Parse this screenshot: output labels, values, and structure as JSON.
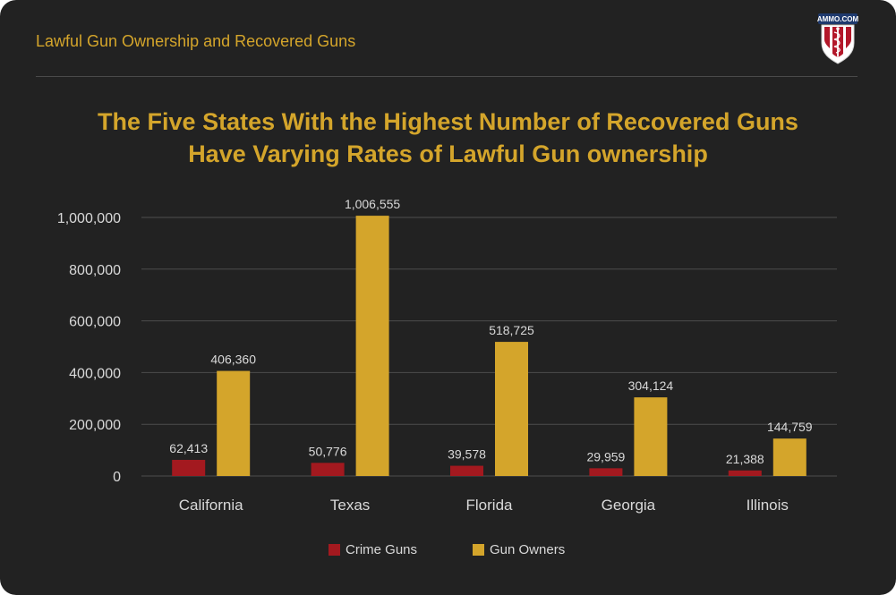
{
  "header": {
    "title": "Lawful Gun Ownership and Recovered Guns",
    "logo_text": "AMMO.COM",
    "logo_icon": "caduceus-shield-icon"
  },
  "colors": {
    "background": "#222222",
    "accent": "#d4a52b",
    "crime_guns": "#a3191f",
    "gun_owners": "#d4a52b",
    "gridline": "#4d4d4d",
    "label": "#d9d9d9"
  },
  "chart_data": {
    "type": "bar",
    "title_lines": [
      "The Five States With the Highest Number of Recovered Guns",
      "Have Varying Rates of Lawful Gun ownership"
    ],
    "categories": [
      "California",
      "Texas",
      "Florida",
      "Georgia",
      "Illinois"
    ],
    "series": [
      {
        "name": "Crime Guns",
        "values": [
          62413,
          50776,
          39578,
          29959,
          21388
        ],
        "labels": [
          "62,413",
          "50,776",
          "39,578",
          "29,959",
          "21,388"
        ]
      },
      {
        "name": "Gun Owners",
        "values": [
          406360,
          1006555,
          518725,
          304124,
          144759
        ],
        "labels": [
          "406,360",
          "1,006,555",
          "518,725",
          "304,124",
          "144,759"
        ]
      }
    ],
    "ylim": [
      0,
      1000000
    ],
    "yticks": [
      0,
      200000,
      400000,
      600000,
      800000,
      1000000
    ],
    "ytick_labels": [
      "0",
      "200,000",
      "400,000",
      "600,000",
      "800,000",
      "1,000,000"
    ],
    "grid": true,
    "legend_position": "bottom"
  }
}
